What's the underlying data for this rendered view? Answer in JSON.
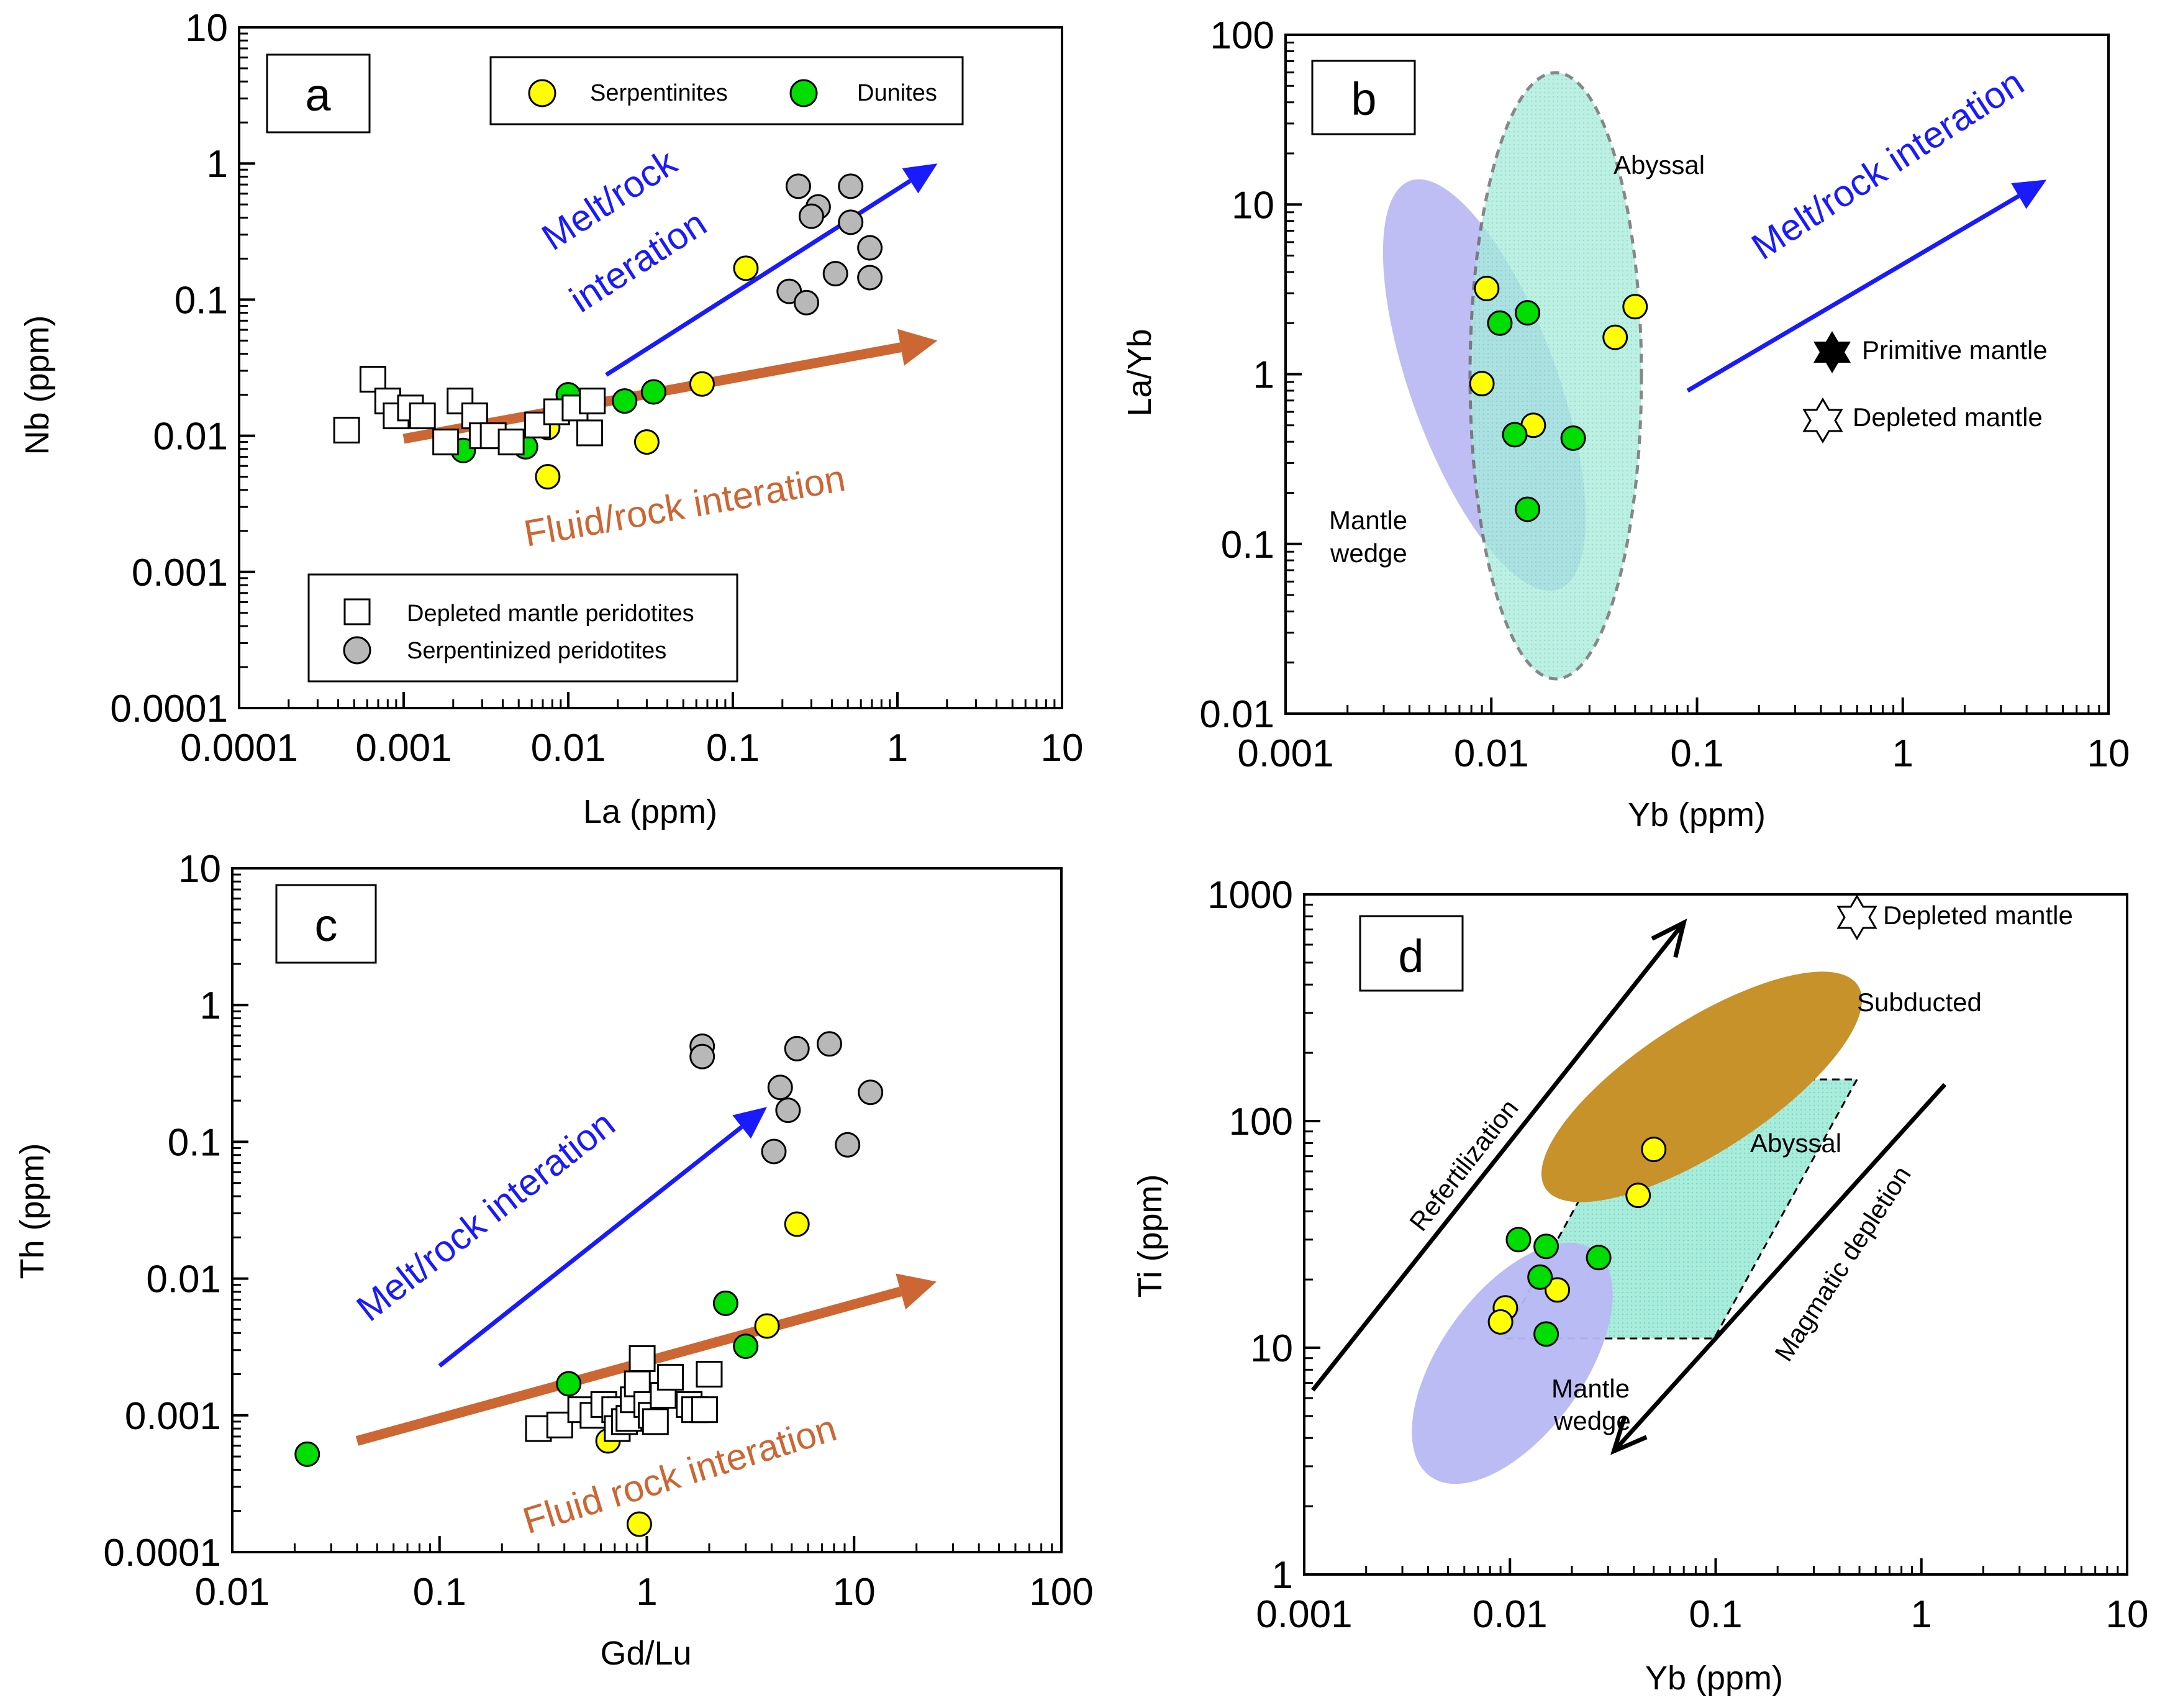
{
  "colors": {
    "serpentinite": "#ffff00",
    "dunite": "#00dd00",
    "peridotite_fill": "#b8b8b8",
    "melt_arrow": "#1a1aff",
    "fluid_arrow": "#cc6633",
    "mantle_wedge": "#b8b8f4",
    "abyssal": "#a8ecdc",
    "subducted": "#c8922a",
    "black": "#000000"
  },
  "chart_data": [
    {
      "id": "a",
      "type": "scatter",
      "panel_label": "a",
      "xscale": "log",
      "yscale": "log",
      "xlim": [
        0.0001,
        10
      ],
      "ylim": [
        0.0001,
        10
      ],
      "xlabel": "La (ppm)",
      "ylabel": "Nb (ppm)",
      "xticks": [
        {
          "v": 0.0001,
          "label": "0.0001"
        },
        {
          "v": 0.001,
          "label": "0.001"
        },
        {
          "v": 0.01,
          "label": "0.01"
        },
        {
          "v": 0.1,
          "label": "0.1"
        },
        {
          "v": 1,
          "label": "1"
        },
        {
          "v": 10,
          "label": "10"
        }
      ],
      "yticks": [
        {
          "v": 0.0001,
          "label": "0.0001"
        },
        {
          "v": 0.001,
          "label": "0.001"
        },
        {
          "v": 0.01,
          "label": "0.01"
        },
        {
          "v": 0.1,
          "label": "0.1"
        },
        {
          "v": 1,
          "label": "1"
        },
        {
          "v": 10,
          "label": "10"
        }
      ],
      "legends": [
        {
          "placement": "top-right",
          "items": [
            {
              "label": "Serpentinites",
              "marker": "serpentinite"
            },
            {
              "label": "Dunites",
              "marker": "dunite"
            }
          ]
        },
        {
          "placement": "bottom-center",
          "items": [
            {
              "label": "Depleted mantle peridotites",
              "marker": "depleted"
            },
            {
              "label": "Serpentinized peridotites",
              "marker": "serpentinized"
            }
          ]
        }
      ],
      "series": [
        {
          "name": "Serpentinites",
          "marker": "serpentinite",
          "points": [
            [
              0.12,
              0.17
            ],
            [
              0.065,
              0.024
            ],
            [
              0.03,
              0.009
            ],
            [
              0.0075,
              0.0115
            ],
            [
              0.0075,
              0.005
            ]
          ]
        },
        {
          "name": "Dunites",
          "marker": "dunite",
          "points": [
            [
              0.0023,
              0.0078
            ],
            [
              0.0055,
              0.0083
            ],
            [
              0.01,
              0.02
            ],
            [
              0.022,
              0.018
            ],
            [
              0.033,
              0.021
            ]
          ]
        },
        {
          "name": "Depleted mantle peridotites",
          "marker": "depleted",
          "points": [
            [
              0.00045,
              0.011
            ],
            [
              0.00065,
              0.026
            ],
            [
              0.0008,
              0.018
            ],
            [
              0.0009,
              0.014
            ],
            [
              0.0011,
              0.016
            ],
            [
              0.0013,
              0.014
            ],
            [
              0.0018,
              0.009
            ],
            [
              0.0022,
              0.018
            ],
            [
              0.0027,
              0.014
            ],
            [
              0.003,
              0.01
            ],
            [
              0.0035,
              0.01
            ],
            [
              0.0045,
              0.009
            ],
            [
              0.0065,
              0.012
            ],
            [
              0.0085,
              0.015
            ],
            [
              0.011,
              0.016
            ],
            [
              0.014,
              0.018
            ],
            [
              0.0135,
              0.0105
            ]
          ]
        },
        {
          "name": "Serpentinized peridotites",
          "marker": "serpentinized",
          "points": [
            [
              0.25,
              0.68
            ],
            [
              0.52,
              0.68
            ],
            [
              0.33,
              0.48
            ],
            [
              0.3,
              0.41
            ],
            [
              0.52,
              0.37
            ],
            [
              0.68,
              0.24
            ],
            [
              0.22,
              0.115
            ],
            [
              0.28,
              0.095
            ],
            [
              0.42,
              0.155
            ],
            [
              0.68,
              0.145
            ]
          ]
        }
      ],
      "arrows": [
        {
          "label": "Melt/rock interation",
          "lines": [
            "Melt/rock",
            "interation"
          ],
          "color": "melt_arrow",
          "from": [
            0.017,
            0.028
          ],
          "to": [
            1.75,
            1.0
          ]
        },
        {
          "label": "Fluid/rock interation",
          "lines": [
            "Fluid/rock interation"
          ],
          "color": "fluid_arrow",
          "from": [
            0.001,
            0.0095
          ],
          "to": [
            1.75,
            0.05
          ]
        }
      ]
    },
    {
      "id": "b",
      "type": "scatter",
      "panel_label": "b",
      "xscale": "log",
      "yscale": "log",
      "xlim": [
        0.001,
        10
      ],
      "ylim": [
        0.01,
        100
      ],
      "xlabel": "Yb (ppm)",
      "ylabel": "La/Yb",
      "xticks": [
        {
          "v": 0.001,
          "label": "0.001"
        },
        {
          "v": 0.01,
          "label": "0.01"
        },
        {
          "v": 0.1,
          "label": "0.1"
        },
        {
          "v": 1,
          "label": "1"
        },
        {
          "v": 10,
          "label": "10"
        }
      ],
      "yticks": [
        {
          "v": 0.01,
          "label": "0.01"
        },
        {
          "v": 0.1,
          "label": "0.1"
        },
        {
          "v": 1,
          "label": "1"
        },
        {
          "v": 10,
          "label": "10"
        },
        {
          "v": 100,
          "label": "100"
        }
      ],
      "fields": [
        {
          "label": "Mantle wedge",
          "lines": [
            "Mantle",
            "wedge"
          ],
          "color": "mantle_wedge"
        },
        {
          "label": "Abyssal",
          "lines": [
            "Abyssal"
          ],
          "color": "abyssal",
          "dashed": true
        }
      ],
      "series": [
        {
          "name": "Serpentinites",
          "marker": "serpentinite",
          "points": [
            [
              0.0095,
              3.2
            ],
            [
              0.009,
              0.88
            ],
            [
              0.016,
              0.5
            ],
            [
              0.04,
              1.65
            ],
            [
              0.05,
              2.5
            ]
          ]
        },
        {
          "name": "Dunites",
          "marker": "dunite",
          "points": [
            [
              0.011,
              2.0
            ],
            [
              0.015,
              2.3
            ],
            [
              0.013,
              0.44
            ],
            [
              0.025,
              0.42
            ],
            [
              0.015,
              0.16
            ]
          ]
        }
      ],
      "symbols": [
        {
          "label": "Primitive mantle",
          "marker": "star-filled"
        },
        {
          "label": "Depleted mantle",
          "marker": "star-open"
        }
      ],
      "arrows": [
        {
          "label": "Melt/rock interation",
          "lines": [
            "Melt/rock interation"
          ],
          "color": "melt_arrow",
          "from": [
            0.09,
            0.8
          ],
          "to": [
            5.0,
            14.0
          ]
        }
      ]
    },
    {
      "id": "c",
      "type": "scatter",
      "panel_label": "c",
      "xscale": "log",
      "yscale": "log",
      "xlim": [
        0.01,
        100
      ],
      "ylim": [
        0.0001,
        10
      ],
      "xlabel": "Gd/Lu",
      "ylabel": "Th (ppm)",
      "xticks": [
        {
          "v": 0.01,
          "label": "0.01"
        },
        {
          "v": 0.1,
          "label": "0.1"
        },
        {
          "v": 1,
          "label": "1"
        },
        {
          "v": 10,
          "label": "10"
        },
        {
          "v": 100,
          "label": "100"
        }
      ],
      "yticks": [
        {
          "v": 0.0001,
          "label": "0.0001"
        },
        {
          "v": 0.001,
          "label": "0.001"
        },
        {
          "v": 0.01,
          "label": "0.01"
        },
        {
          "v": 0.1,
          "label": "0.1"
        },
        {
          "v": 1,
          "label": "1"
        },
        {
          "v": 10,
          "label": "10"
        }
      ],
      "series": [
        {
          "name": "Serpentinites",
          "marker": "serpentinite",
          "points": [
            [
              5.3,
              0.025
            ],
            [
              3.8,
              0.0045
            ],
            [
              0.65,
              0.00065
            ],
            [
              0.92,
              0.00016
            ]
          ]
        },
        {
          "name": "Dunites",
          "marker": "dunite",
          "points": [
            [
              0.023,
              0.00052
            ],
            [
              2.4,
              0.0066
            ],
            [
              3.0,
              0.0032
            ],
            [
              0.42,
              0.0017
            ],
            [
              0.97,
              0.0012
            ]
          ]
        },
        {
          "name": "Depleted mantle peridotites",
          "marker": "depleted",
          "points": [
            [
              0.3,
              0.0008
            ],
            [
              0.38,
              0.00085
            ],
            [
              0.48,
              0.0011
            ],
            [
              0.55,
              0.001
            ],
            [
              0.62,
              0.0012
            ],
            [
              0.7,
              0.0011
            ],
            [
              0.72,
              0.0008
            ],
            [
              0.78,
              0.0009
            ],
            [
              0.82,
              0.00095
            ],
            [
              0.86,
              0.0013
            ],
            [
              0.9,
              0.0017
            ],
            [
              0.95,
              0.0026
            ],
            [
              1.0,
              0.0012
            ],
            [
              1.05,
              0.001
            ],
            [
              1.1,
              0.0009
            ],
            [
              1.2,
              0.0014
            ],
            [
              1.3,
              0.0019
            ],
            [
              1.6,
              0.0012
            ],
            [
              1.7,
              0.0011
            ],
            [
              1.9,
              0.0011
            ],
            [
              2.0,
              0.002
            ]
          ]
        },
        {
          "name": "Serpentinized peridotites",
          "marker": "serpentinized",
          "points": [
            [
              1.85,
              0.5
            ],
            [
              1.85,
              0.42
            ],
            [
              5.3,
              0.48
            ],
            [
              7.6,
              0.52
            ],
            [
              4.4,
              0.25
            ],
            [
              4.8,
              0.17
            ],
            [
              4.1,
              0.085
            ],
            [
              9.3,
              0.095
            ],
            [
              12.0,
              0.23
            ]
          ]
        }
      ],
      "arrows": [
        {
          "label": "Melt/rock interation",
          "lines": [
            "Melt/rock interation"
          ],
          "color": "melt_arrow",
          "from": [
            0.1,
            0.0023
          ],
          "to": [
            3.8,
            0.18
          ]
        },
        {
          "label": "Fluid rock interation",
          "lines": [
            "Fluid rock interation"
          ],
          "color": "fluid_arrow",
          "from": [
            0.04,
            0.00065
          ],
          "to": [
            25.0,
            0.0095
          ]
        }
      ]
    },
    {
      "id": "d",
      "type": "scatter",
      "panel_label": "d",
      "xscale": "log",
      "yscale": "log",
      "xlim": [
        0.001,
        10
      ],
      "ylim": [
        1,
        1000
      ],
      "xlabel": "Yb (ppm)",
      "ylabel": "Ti (ppm)",
      "xticks": [
        {
          "v": 0.001,
          "label": "0.001"
        },
        {
          "v": 0.01,
          "label": "0.01"
        },
        {
          "v": 0.1,
          "label": "0.1"
        },
        {
          "v": 1,
          "label": "1"
        },
        {
          "v": 10,
          "label": "10"
        }
      ],
      "yticks": [
        {
          "v": 1,
          "label": "1"
        },
        {
          "v": 10,
          "label": "10"
        },
        {
          "v": 100,
          "label": "100"
        },
        {
          "v": 1000,
          "label": "1000"
        }
      ],
      "fields": [
        {
          "label": "Subducted",
          "lines": [
            "Subducted"
          ],
          "color": "subducted"
        },
        {
          "label": "Abyssal",
          "lines": [
            "Abyssal"
          ],
          "color": "abyssal",
          "dashed": true
        },
        {
          "label": "Mantle wedge",
          "lines": [
            "Mantle",
            "wedge"
          ],
          "color": "mantle_wedge"
        }
      ],
      "series": [
        {
          "name": "Serpentinites",
          "marker": "serpentinite",
          "points": [
            [
              0.05,
              75
            ],
            [
              0.042,
              47
            ],
            [
              0.017,
              18
            ],
            [
              0.0095,
              15
            ],
            [
              0.009,
              13
            ]
          ]
        },
        {
          "name": "Dunites",
          "marker": "dunite",
          "points": [
            [
              0.011,
              30
            ],
            [
              0.015,
              28
            ],
            [
              0.014,
              20.5
            ],
            [
              0.027,
              25
            ],
            [
              0.015,
              11.5
            ]
          ]
        }
      ],
      "symbols": [
        {
          "label": "Depleted mantle",
          "marker": "star-open"
        }
      ],
      "arrows": [
        {
          "label": "Refertilization",
          "lines": [
            "Refertilization"
          ],
          "color": "black",
          "from": [
            0.0011,
            6.5
          ],
          "to": [
            0.07,
            750
          ]
        },
        {
          "label": "Magmatic depletion",
          "lines": [
            "Magmatic depletion"
          ],
          "color": "black",
          "from": [
            1.3,
            145
          ],
          "to": [
            0.032,
            3.5
          ]
        }
      ]
    }
  ]
}
